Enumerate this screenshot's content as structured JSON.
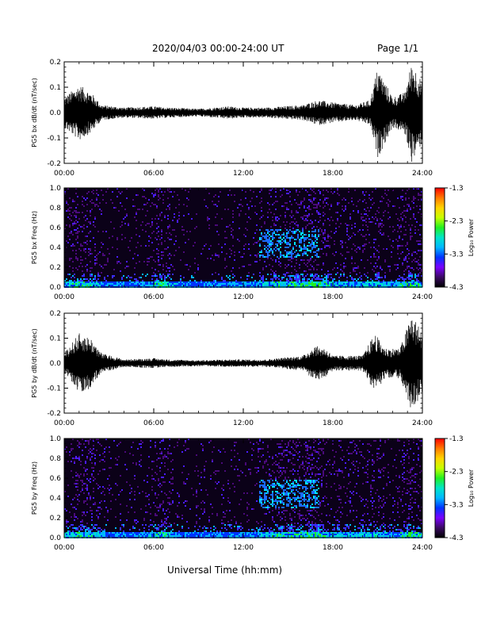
{
  "header": {
    "title": "2020/04/03  00:00-24:00 UT",
    "page": "Page 1/1"
  },
  "footer": {
    "xlabel": "Universal Time (hh:mm)"
  },
  "colors": {
    "colorbar_stops": [
      "#000000",
      "#3b0a63",
      "#7a00ff",
      "#0033ff",
      "#00b7ff",
      "#00e5c8",
      "#21f021",
      "#c7ff00",
      "#ffd400",
      "#ff7a00",
      "#ff0000"
    ]
  },
  "chart_data": [
    {
      "type": "line",
      "ylabel": "PG5 bx dB/dt (nT/sec)",
      "ylim": [
        -0.2,
        0.2
      ],
      "yticks": [
        "0.2",
        "0.1",
        "0.0",
        "-0.1",
        "-0.2"
      ],
      "ytick_values": [
        0.2,
        0.1,
        0.0,
        -0.1,
        -0.2
      ],
      "xlim": [
        0,
        24
      ],
      "xticks": [
        "00:00",
        "06:00",
        "12:00",
        "18:00",
        "24:00"
      ],
      "envelope": {
        "hour": [
          0,
          1,
          1.8,
          2.5,
          4,
          6,
          7,
          9,
          11,
          12,
          13.5,
          16,
          17,
          18,
          19.5,
          20.5,
          21,
          22,
          22.8,
          23.3,
          24
        ],
        "amp": [
          0.06,
          0.11,
          0.08,
          0.03,
          0.02,
          0.025,
          0.02,
          0.015,
          0.025,
          0.02,
          0.02,
          0.03,
          0.05,
          0.04,
          0.03,
          0.05,
          0.18,
          0.06,
          0.08,
          0.2,
          0.12
        ]
      }
    },
    {
      "type": "heatmap",
      "ylabel": "PG5 bx Freq (Hz)",
      "ylim": [
        0,
        1.0
      ],
      "yticks": [
        "1.0",
        "0.8",
        "0.6",
        "0.4",
        "0.2",
        "0.0"
      ],
      "ytick_values": [
        1.0,
        0.8,
        0.6,
        0.4,
        0.2,
        0.0
      ],
      "xlim": [
        0,
        24
      ],
      "xticks": [
        "00:00",
        "06:00",
        "12:00",
        "18:00",
        "24:00"
      ],
      "colorbar": {
        "label": "Log₁₀ Power",
        "range": [
          -4.3,
          -1.3
        ],
        "ticks": [
          "-1.3",
          "-2.3",
          "-3.3",
          "-4.3"
        ],
        "tick_values": [
          -1.3,
          -2.3,
          -3.3,
          -4.3
        ]
      }
    },
    {
      "type": "line",
      "ylabel": "PG5 by dB/dt (nT/sec)",
      "ylim": [
        -0.2,
        0.2
      ],
      "yticks": [
        "0.2",
        "0.1",
        "0.0",
        "-0.1",
        "-0.2"
      ],
      "ytick_values": [
        0.2,
        0.1,
        0.0,
        -0.1,
        -0.2
      ],
      "xlim": [
        0,
        24
      ],
      "xticks": [
        "00:00",
        "06:00",
        "12:00",
        "18:00",
        "24:00"
      ],
      "envelope": {
        "hour": [
          0,
          1,
          1.8,
          2.5,
          4,
          6,
          7,
          9,
          11,
          12,
          13.5,
          16,
          16.8,
          17.5,
          18,
          20,
          20.8,
          21.5,
          22.5,
          23.3,
          24
        ],
        "amp": [
          0.04,
          0.12,
          0.1,
          0.04,
          0.015,
          0.02,
          0.015,
          0.012,
          0.015,
          0.015,
          0.015,
          0.03,
          0.07,
          0.06,
          0.03,
          0.03,
          0.12,
          0.06,
          0.06,
          0.2,
          0.12
        ]
      }
    },
    {
      "type": "heatmap",
      "ylabel": "PG5 by Freq (Hz)",
      "ylim": [
        0,
        1.0
      ],
      "yticks": [
        "1.0",
        "0.8",
        "0.6",
        "0.4",
        "0.2",
        "0.0"
      ],
      "ytick_values": [
        1.0,
        0.8,
        0.6,
        0.4,
        0.2,
        0.0
      ],
      "xlim": [
        0,
        24
      ],
      "xticks": [
        "00:00",
        "06:00",
        "12:00",
        "18:00",
        "24:00"
      ],
      "colorbar": {
        "label": "Log₁₀ Power",
        "range": [
          -4.3,
          -1.3
        ],
        "ticks": [
          "-1.3",
          "-2.3",
          "-3.3",
          "-4.3"
        ],
        "tick_values": [
          -1.3,
          -2.3,
          -3.3,
          -4.3
        ]
      }
    }
  ]
}
